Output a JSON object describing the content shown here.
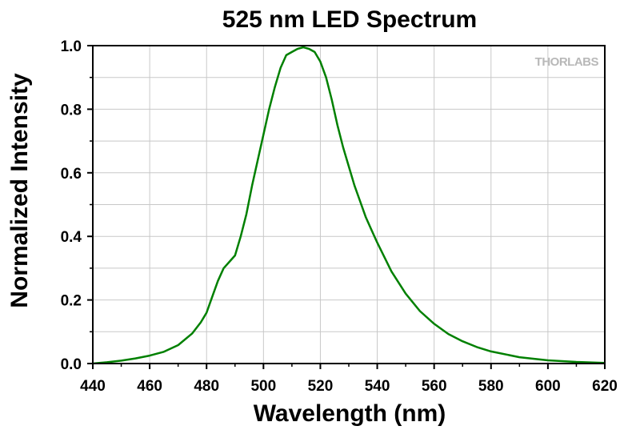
{
  "chart_data": {
    "type": "line",
    "title": "525 nm LED Spectrum",
    "xlabel": "Wavelength (nm)",
    "ylabel": "Normalized Intensity",
    "xlim": [
      440,
      620
    ],
    "ylim": [
      0,
      1.0
    ],
    "x_ticks": [
      "440",
      "460",
      "480",
      "500",
      "520",
      "540",
      "560",
      "580",
      "600",
      "620"
    ],
    "y_ticks": [
      "0.0",
      "0.2",
      "0.4",
      "0.6",
      "0.8",
      "1.0"
    ],
    "grid": true,
    "watermark": "THORLABS",
    "series": [
      {
        "color": "#008000",
        "x": [
          440,
          445,
          450,
          455,
          460,
          465,
          470,
          475,
          478,
          480,
          482,
          484,
          486,
          488,
          490,
          492,
          494,
          496,
          498,
          500,
          502,
          504,
          506,
          508,
          510,
          512,
          514,
          516,
          518,
          520,
          522,
          524,
          526,
          528,
          530,
          532,
          534,
          536,
          538,
          540,
          545,
          550,
          555,
          560,
          565,
          570,
          575,
          580,
          590,
          600,
          610,
          620
        ],
        "y": [
          0.0,
          0.004,
          0.009,
          0.016,
          0.025,
          0.037,
          0.058,
          0.095,
          0.13,
          0.16,
          0.21,
          0.26,
          0.3,
          0.32,
          0.34,
          0.4,
          0.47,
          0.56,
          0.64,
          0.72,
          0.8,
          0.87,
          0.93,
          0.97,
          0.98,
          0.99,
          0.995,
          0.99,
          0.98,
          0.95,
          0.9,
          0.83,
          0.75,
          0.68,
          0.62,
          0.56,
          0.51,
          0.46,
          0.42,
          0.38,
          0.29,
          0.22,
          0.165,
          0.125,
          0.093,
          0.07,
          0.052,
          0.038,
          0.02,
          0.01,
          0.005,
          0.002
        ]
      }
    ]
  }
}
